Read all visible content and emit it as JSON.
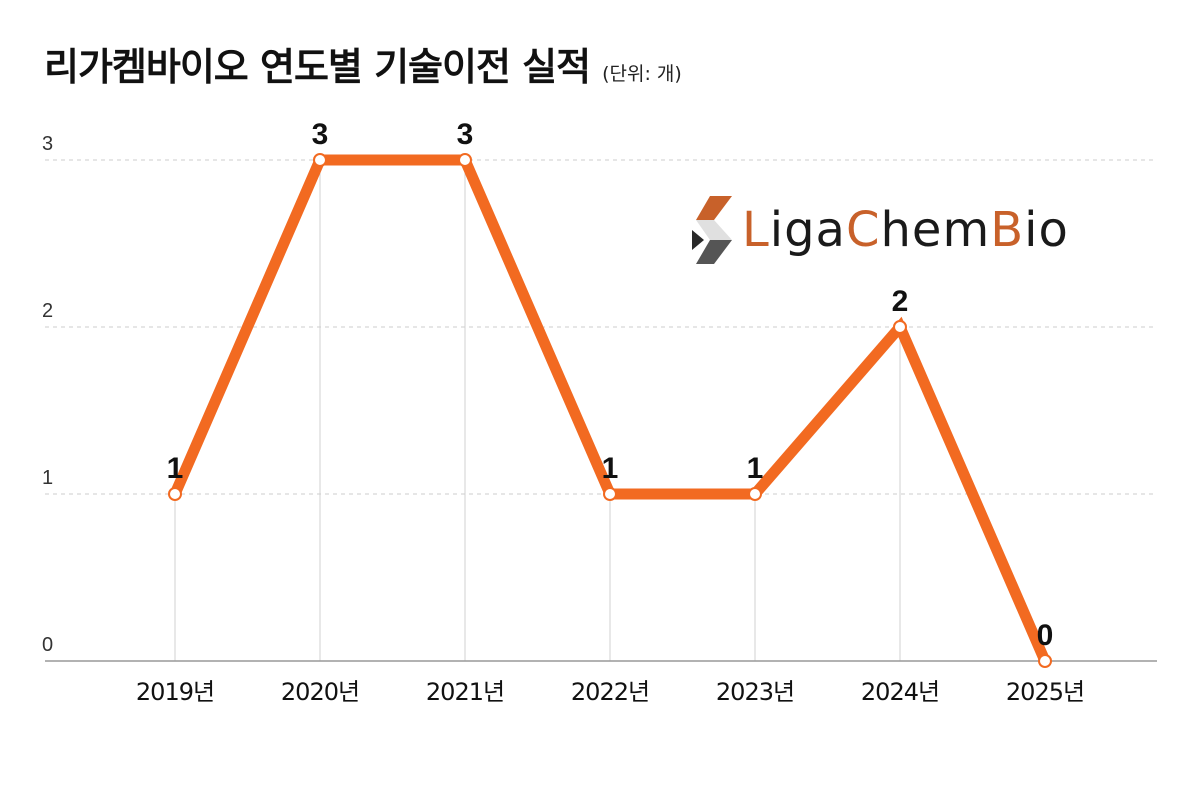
{
  "header": {
    "title": "리가켐바이오 연도별 기술이전 실적",
    "unit": "(단위: 개)"
  },
  "logo": {
    "parts": [
      "L",
      "iga",
      "C",
      "hem",
      "B",
      "io"
    ],
    "colors": {
      "accent": "#c8612a",
      "dark": "#1a1a1a"
    }
  },
  "chart_data": {
    "type": "line",
    "title": "리가켐바이오 연도별 기술이전 실적",
    "unit": "(단위: 개)",
    "categories": [
      "2019년",
      "2020년",
      "2021년",
      "2022년",
      "2023년",
      "2024년",
      "2025년"
    ],
    "values": [
      1,
      3,
      3,
      1,
      1,
      2,
      0
    ],
    "ylim": [
      0,
      3
    ],
    "yticks": [
      0,
      1,
      2,
      3
    ],
    "grid": true,
    "colors": {
      "line": "#f26a21",
      "grid": "#cccccc",
      "axis": "#999999"
    }
  }
}
